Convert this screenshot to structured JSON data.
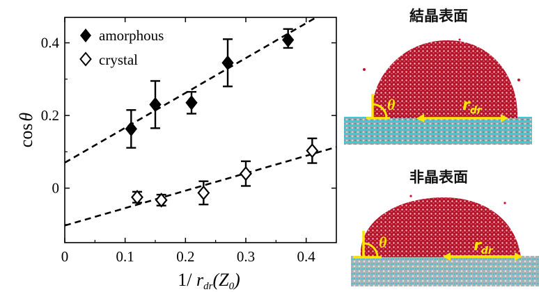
{
  "chart_data": {
    "type": "scatter",
    "xlabel_prefix": "1/ ",
    "xlabel_r": "r",
    "xlabel_sub": "dr",
    "xlabel_suffix": "(Z",
    "xlabel_sub2": "0",
    "xlabel_close": ")",
    "ylabel_prefix": "cos",
    "ylabel_theta": "θ",
    "xlim": [
      0,
      0.45
    ],
    "ylim": [
      -0.15,
      0.47
    ],
    "xticks": [
      0,
      0.1,
      0.2,
      0.3,
      0.4
    ],
    "xtick_labels": [
      "0",
      "0.1",
      "0.2",
      "0.3",
      "0.4"
    ],
    "yticks": [
      0,
      0.2,
      0.4
    ],
    "ytick_labels": [
      "0",
      "0.2",
      "0.4"
    ],
    "legend_position": "top-left",
    "series": [
      {
        "name": "amorphous",
        "marker": "filled-diamond",
        "color": "#000000",
        "x": [
          0.11,
          0.15,
          0.21,
          0.27,
          0.37
        ],
        "y": [
          0.163,
          0.23,
          0.235,
          0.345,
          0.408
        ],
        "err_low": [
          0.052,
          0.065,
          0.03,
          0.065,
          0.022
        ],
        "err_high": [
          0.052,
          0.065,
          0.03,
          0.065,
          0.03
        ],
        "fit": {
          "intercept": 0.07,
          "slope": 0.96
        }
      },
      {
        "name": "crystal",
        "marker": "open-diamond",
        "color": "#000000",
        "x": [
          0.12,
          0.16,
          0.23,
          0.3,
          0.41
        ],
        "y": [
          -0.025,
          -0.033,
          -0.013,
          0.04,
          0.103
        ],
        "err_low": [
          0.015,
          0.015,
          0.032,
          0.034,
          0.034
        ],
        "err_high": [
          0.015,
          0.015,
          0.032,
          0.034,
          0.034
        ],
        "fit": {
          "intercept": -0.103,
          "slope": 0.48
        }
      }
    ]
  },
  "panels": {
    "top": {
      "title": "結晶表面",
      "theta": "θ",
      "r": "r",
      "r_sub": "dr"
    },
    "bottom": {
      "title": "非晶表面",
      "theta": "θ",
      "r": "r",
      "r_sub": "dr"
    }
  },
  "colors": {
    "fit_line": "#000000",
    "annotation": "#ffe600",
    "water_red": "#c8102e",
    "substrate_cyan": "#3fc8d8"
  }
}
